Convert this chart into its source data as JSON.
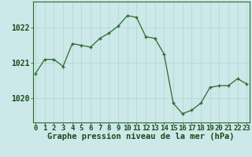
{
  "x": [
    0,
    1,
    2,
    3,
    4,
    5,
    6,
    7,
    8,
    9,
    10,
    11,
    12,
    13,
    14,
    15,
    16,
    17,
    18,
    19,
    20,
    21,
    22,
    23
  ],
  "y": [
    1020.7,
    1021.1,
    1021.1,
    1020.9,
    1021.55,
    1021.5,
    1021.45,
    1021.7,
    1021.85,
    1022.05,
    1022.35,
    1022.3,
    1021.75,
    1021.7,
    1021.25,
    1019.85,
    1019.55,
    1019.65,
    1019.85,
    1020.3,
    1020.35,
    1020.35,
    1020.55,
    1020.4
  ],
  "line_color": "#2d6a2d",
  "marker_color": "#2d6a2d",
  "bg_color": "#cce8e8",
  "grid_color": "#b0d4d4",
  "xlabel": "Graphe pression niveau de la mer (hPa)",
  "xlabel_color": "#1a4a1a",
  "tick_color": "#1a4a1a",
  "ylim": [
    1019.3,
    1022.75
  ],
  "yticks": [
    1020,
    1021,
    1022
  ],
  "xticks": [
    0,
    1,
    2,
    3,
    4,
    5,
    6,
    7,
    8,
    9,
    10,
    11,
    12,
    13,
    14,
    15,
    16,
    17,
    18,
    19,
    20,
    21,
    22,
    23
  ],
  "axis_fontsize": 6.5,
  "xlabel_fontsize": 7.5
}
